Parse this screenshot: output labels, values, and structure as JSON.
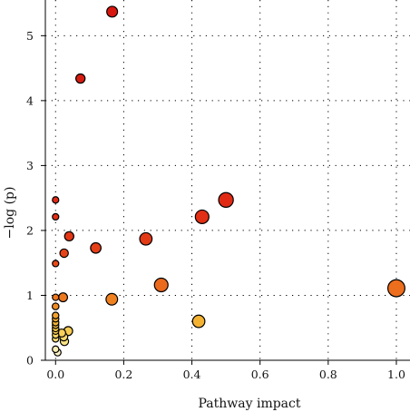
{
  "chart_data": {
    "type": "scatter",
    "title": "",
    "xlabel": "Pathway impact",
    "ylabel": "−log (p)",
    "xlim": [
      -0.03,
      1.04
    ],
    "ylim": [
      0,
      5.55
    ],
    "x_ticks": [
      "0.0",
      "0.2",
      "0.4",
      "0.6",
      "0.8",
      "1.0"
    ],
    "y_ticks": [
      "0",
      "1",
      "2",
      "3",
      "4",
      "5"
    ],
    "grid": true,
    "color_scale": [
      "#fff5cf",
      "#f9e07a",
      "#f2b631",
      "#ee7a1c",
      "#e23016",
      "#cc1010"
    ],
    "points": [
      {
        "x": 0.166,
        "y": 5.37,
        "size": 0.4,
        "color": "#d8180f"
      },
      {
        "x": 0.073,
        "y": 4.34,
        "size": 0.3,
        "color": "#d61c10"
      },
      {
        "x": 0.0,
        "y": 2.47,
        "size": 0.12,
        "color": "#e12a14"
      },
      {
        "x": 0.5,
        "y": 2.47,
        "size": 0.65,
        "color": "#e12a14"
      },
      {
        "x": 0.43,
        "y": 2.21,
        "size": 0.58,
        "color": "#e12f15"
      },
      {
        "x": 0.0,
        "y": 2.21,
        "size": 0.12,
        "color": "#e12f15"
      },
      {
        "x": 0.04,
        "y": 1.91,
        "size": 0.3,
        "color": "#e33716"
      },
      {
        "x": 0.265,
        "y": 1.87,
        "size": 0.5,
        "color": "#e33a16"
      },
      {
        "x": 0.118,
        "y": 1.73,
        "size": 0.38,
        "color": "#e53f17"
      },
      {
        "x": 0.025,
        "y": 1.65,
        "size": 0.25,
        "color": "#e64418"
      },
      {
        "x": 0.0,
        "y": 1.49,
        "size": 0.12,
        "color": "#e84a19"
      },
      {
        "x": 0.31,
        "y": 1.16,
        "size": 0.58,
        "color": "#ec6a1c"
      },
      {
        "x": 1.0,
        "y": 1.11,
        "size": 0.8,
        "color": "#ed6e1d"
      },
      {
        "x": 0.022,
        "y": 0.97,
        "size": 0.28,
        "color": "#ee781e"
      },
      {
        "x": 0.0,
        "y": 0.97,
        "size": 0.12,
        "color": "#ee781e"
      },
      {
        "x": 0.165,
        "y": 0.94,
        "size": 0.45,
        "color": "#f0811f"
      },
      {
        "x": 0.0,
        "y": 0.83,
        "size": 0.14,
        "color": "#f08c22"
      },
      {
        "x": 0.0,
        "y": 0.69,
        "size": 0.13,
        "color": "#f2a22c"
      },
      {
        "x": 0.0,
        "y": 0.64,
        "size": 0.13,
        "color": "#f3a92e"
      },
      {
        "x": 0.42,
        "y": 0.6,
        "size": 0.5,
        "color": "#f3b232"
      },
      {
        "x": 0.0,
        "y": 0.58,
        "size": 0.13,
        "color": "#f4b434"
      },
      {
        "x": 0.0,
        "y": 0.54,
        "size": 0.13,
        "color": "#f5bd3c"
      },
      {
        "x": 0.0,
        "y": 0.49,
        "size": 0.13,
        "color": "#f6c445"
      },
      {
        "x": 0.0,
        "y": 0.45,
        "size": 0.13,
        "color": "#f7cc52"
      },
      {
        "x": 0.037,
        "y": 0.45,
        "size": 0.28,
        "color": "#f7cc52"
      },
      {
        "x": 0.018,
        "y": 0.42,
        "size": 0.22,
        "color": "#f8d05a"
      },
      {
        "x": 0.0,
        "y": 0.39,
        "size": 0.13,
        "color": "#f8d462"
      },
      {
        "x": 0.024,
        "y": 0.36,
        "size": 0.22,
        "color": "#f9d86a"
      },
      {
        "x": 0.0,
        "y": 0.33,
        "size": 0.13,
        "color": "#f9dc74"
      },
      {
        "x": 0.026,
        "y": 0.29,
        "size": 0.24,
        "color": "#fae383"
      },
      {
        "x": 0.0,
        "y": 0.17,
        "size": 0.13,
        "color": "#fcefb5"
      },
      {
        "x": 0.006,
        "y": 0.12,
        "size": 0.15,
        "color": "#fdf3c6"
      }
    ]
  }
}
